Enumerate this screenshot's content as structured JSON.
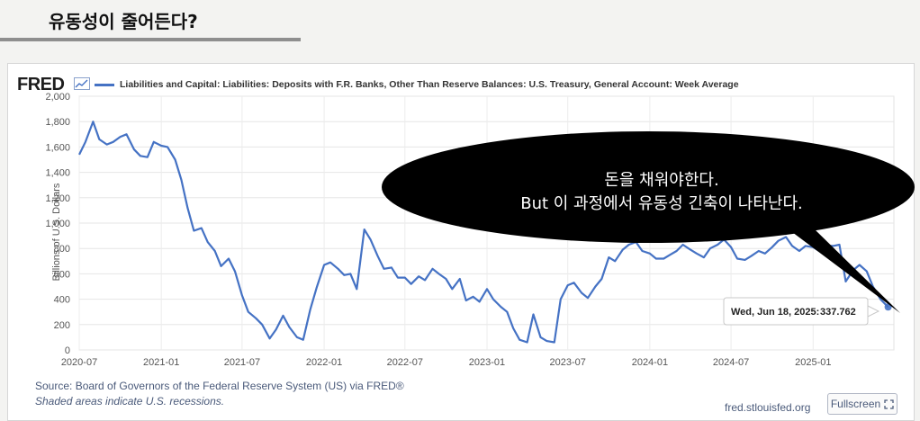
{
  "slide": {
    "title": "유동성이 줄어든다?"
  },
  "fred": {
    "logo": "FRED",
    "source": "Source: Board of Governors of the Federal Reserve System (US) via FRED®",
    "shaded_note": "Shaded areas indicate U.S. recessions.",
    "url": "fred.stlouisfed.org",
    "fullscreen_label": "Fullscreen"
  },
  "annotation": {
    "line1": "돈을 채워야한다.",
    "line2": "But 이 과정에서 유동성 긴축이 나타난다."
  },
  "tooltip": {
    "date": "Wed, Jun 18, 2025:",
    "value": "337.762"
  },
  "colors": {
    "series": "#4572c4",
    "bubble": "#000000"
  },
  "chart_data": {
    "type": "line",
    "title": "",
    "series_name": "Liabilities and Capital: Liabilities: Deposits with F.R. Banks, Other Than Reserve Balances: U.S. Treasury, General Account: Week Average",
    "ylabel": "Billions of U.S. Dollars",
    "ylim": [
      0,
      2000
    ],
    "yticks": [
      0,
      200,
      400,
      600,
      800,
      1000,
      1200,
      1400,
      1600,
      1800,
      2000
    ],
    "ytick_labels": [
      "0",
      "200",
      "400",
      "600",
      "800",
      "1,000",
      "1,200",
      "1,400",
      "1,600",
      "1,800",
      "2,000"
    ],
    "xlim": [
      "2020-07-01",
      "2025-07-01"
    ],
    "xticks": [
      "2020-07",
      "2021-01",
      "2021-07",
      "2022-01",
      "2022-07",
      "2023-01",
      "2023-07",
      "2024-01",
      "2024-07",
      "2025-01"
    ],
    "grid": true,
    "x": [
      "2020-07-01",
      "2020-07-15",
      "2020-08-01",
      "2020-08-15",
      "2020-09-01",
      "2020-09-15",
      "2020-10-01",
      "2020-10-15",
      "2020-11-01",
      "2020-11-15",
      "2020-12-01",
      "2020-12-15",
      "2021-01-01",
      "2021-01-15",
      "2021-02-01",
      "2021-02-15",
      "2021-03-01",
      "2021-03-15",
      "2021-04-01",
      "2021-04-15",
      "2021-05-01",
      "2021-05-15",
      "2021-06-01",
      "2021-06-15",
      "2021-07-01",
      "2021-07-15",
      "2021-08-01",
      "2021-08-15",
      "2021-09-01",
      "2021-09-15",
      "2021-10-01",
      "2021-10-15",
      "2021-11-01",
      "2021-11-15",
      "2021-12-01",
      "2021-12-15",
      "2022-01-01",
      "2022-01-15",
      "2022-02-01",
      "2022-02-15",
      "2022-03-01",
      "2022-03-15",
      "2022-04-01",
      "2022-04-15",
      "2022-05-01",
      "2022-05-15",
      "2022-06-01",
      "2022-06-15",
      "2022-07-01",
      "2022-07-15",
      "2022-08-01",
      "2022-08-15",
      "2022-09-01",
      "2022-09-15",
      "2022-10-01",
      "2022-10-15",
      "2022-11-01",
      "2022-11-15",
      "2022-12-01",
      "2022-12-15",
      "2023-01-01",
      "2023-01-15",
      "2023-02-01",
      "2023-02-15",
      "2023-03-01",
      "2023-03-15",
      "2023-04-01",
      "2023-04-15",
      "2023-05-01",
      "2023-05-15",
      "2023-06-01",
      "2023-06-15",
      "2023-07-01",
      "2023-07-15",
      "2023-08-01",
      "2023-08-15",
      "2023-09-01",
      "2023-09-15",
      "2023-10-01",
      "2023-10-15",
      "2023-11-01",
      "2023-11-15",
      "2023-12-01",
      "2023-12-15",
      "2024-01-01",
      "2024-01-15",
      "2024-02-01",
      "2024-02-15",
      "2024-03-01",
      "2024-03-15",
      "2024-04-01",
      "2024-04-15",
      "2024-05-01",
      "2024-05-15",
      "2024-06-01",
      "2024-06-15",
      "2024-07-01",
      "2024-07-15",
      "2024-08-01",
      "2024-08-15",
      "2024-09-01",
      "2024-09-15",
      "2024-10-01",
      "2024-10-15",
      "2024-11-01",
      "2024-11-15",
      "2024-12-01",
      "2024-12-15",
      "2025-01-01",
      "2025-01-15",
      "2025-02-01",
      "2025-02-15",
      "2025-03-01",
      "2025-03-15",
      "2025-04-01",
      "2025-04-15",
      "2025-05-01",
      "2025-05-15",
      "2025-06-01",
      "2025-06-18"
    ],
    "values": [
      1540,
      1640,
      1800,
      1660,
      1620,
      1640,
      1680,
      1700,
      1580,
      1530,
      1520,
      1640,
      1610,
      1600,
      1500,
      1340,
      1120,
      940,
      960,
      850,
      780,
      660,
      720,
      620,
      430,
      300,
      250,
      200,
      90,
      160,
      270,
      180,
      100,
      80,
      320,
      490,
      670,
      690,
      640,
      590,
      600,
      480,
      950,
      870,
      740,
      640,
      650,
      570,
      570,
      520,
      580,
      550,
      640,
      600,
      560,
      480,
      560,
      390,
      420,
      380,
      480,
      400,
      340,
      300,
      170,
      80,
      60,
      280,
      100,
      70,
      60,
      400,
      510,
      530,
      450,
      410,
      500,
      560,
      730,
      700,
      790,
      830,
      850,
      780,
      760,
      720,
      720,
      750,
      780,
      830,
      790,
      760,
      730,
      800,
      830,
      870,
      810,
      720,
      710,
      740,
      780,
      760,
      810,
      860,
      890,
      820,
      780,
      820,
      810,
      780,
      820,
      820,
      830,
      540,
      630,
      670,
      620,
      500,
      400,
      338
    ]
  }
}
